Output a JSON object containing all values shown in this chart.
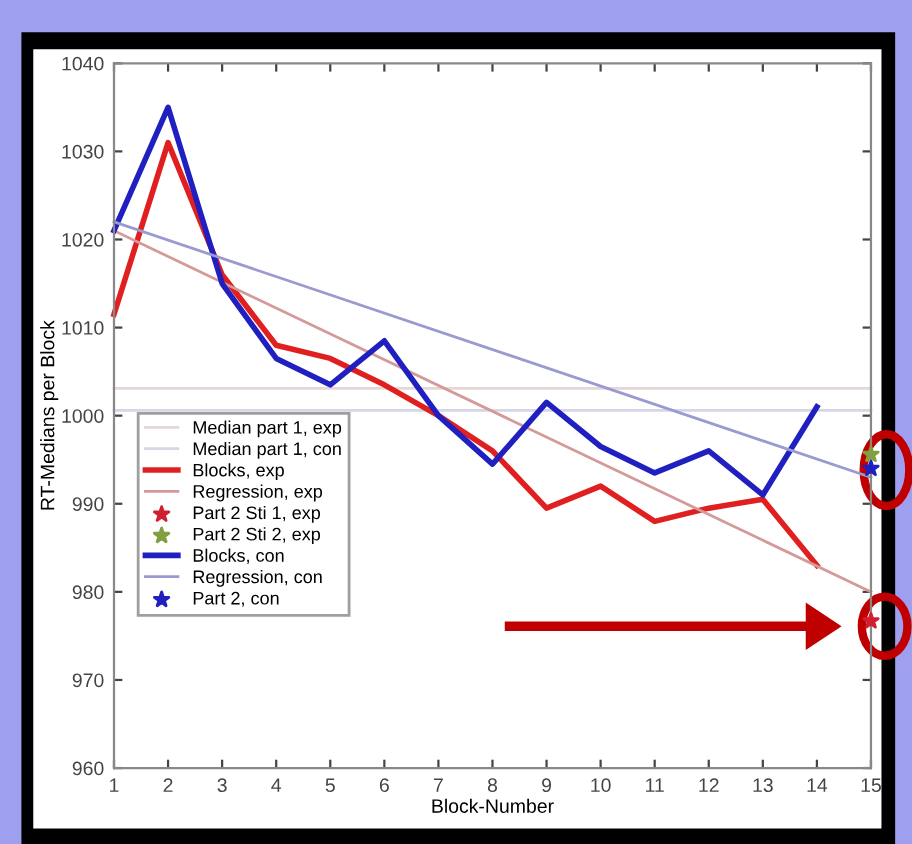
{
  "chart_data": {
    "type": "line",
    "xlabel": "Block-Number",
    "ylabel": "RT-Medians per Block",
    "xlim": [
      1,
      15
    ],
    "xticks": [
      1,
      2,
      3,
      4,
      5,
      6,
      7,
      8,
      9,
      10,
      11,
      12,
      13,
      14,
      15
    ],
    "ylim": [
      960,
      1040
    ],
    "yticks": [
      960,
      970,
      980,
      990,
      1000,
      1010,
      1020,
      1030,
      1040
    ],
    "grid": false,
    "legend": "left",
    "line_style": "solid",
    "series": [
      {
        "name": "Median part 1, exp",
        "color": "#e6d6d6",
        "x": [
          1,
          15
        ],
        "values": [
          1003.1,
          1003.1
        ]
      },
      {
        "name": "Median part 1, con",
        "color": "#d6d6e6",
        "x": [
          1,
          15
        ],
        "values": [
          1000.6,
          1000.6
        ]
      },
      {
        "name": "Blocks, exp",
        "color": "#e02020",
        "x": [
          1,
          2,
          3,
          4,
          5,
          6,
          7,
          8,
          9,
          10,
          11,
          12,
          13,
          14
        ],
        "values": [
          1011.5,
          1031,
          1016,
          1008,
          1006.5,
          1003.5,
          1000,
          996,
          989.5,
          992,
          988,
          989.5,
          990.5,
          983
        ]
      },
      {
        "name": "Regression, exp",
        "color": "#d49a9a",
        "x": [
          1,
          15
        ],
        "values": [
          1021,
          980
        ]
      },
      {
        "name": "Part 2 Sti 1, exp",
        "color": "#d02030",
        "type": "scatter",
        "marker": "star",
        "x": [
          15
        ],
        "values": [
          976.7
        ]
      },
      {
        "name": "Part 2 Sti 2, exp",
        "color": "#80a040",
        "type": "scatter",
        "marker": "star",
        "x": [
          15
        ],
        "values": [
          995.6
        ]
      },
      {
        "name": "Blocks, con",
        "color": "#2020c0",
        "x": [
          1,
          2,
          3,
          4,
          5,
          6,
          7,
          8,
          9,
          10,
          11,
          12,
          13,
          14
        ],
        "values": [
          1021,
          1035,
          1015,
          1006.5,
          1003.5,
          1008.5,
          1000,
          994.5,
          1001.5,
          996.5,
          993.5,
          996,
          991,
          1001
        ]
      },
      {
        "name": "Regression, con",
        "color": "#9a9ad0",
        "x": [
          1,
          15
        ],
        "values": [
          1022,
          993
        ]
      },
      {
        "name": "Part 2, con",
        "color": "#2020c0",
        "type": "scatter",
        "marker": "star",
        "x": [
          15
        ],
        "values": [
          994
        ]
      }
    ]
  }
}
